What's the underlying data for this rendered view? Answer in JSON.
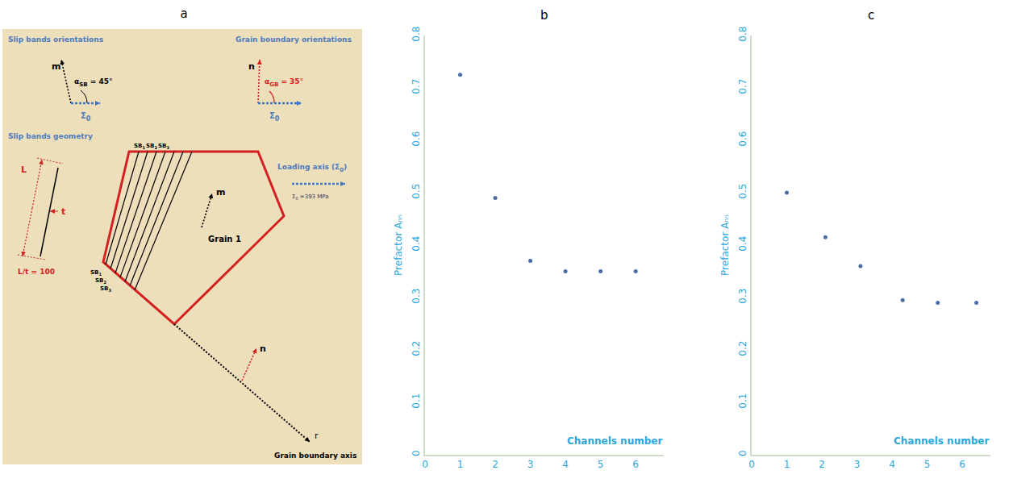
{
  "diagram": {
    "label": "a",
    "slip_bands_orientations": {
      "title": "Slip bands orientations",
      "vector": "m",
      "angle": {
        "base": "α",
        "sub": "SB",
        "tail": " = 45°"
      },
      "load": {
        "base": "Σ",
        "sub": "0",
        "tail": ""
      }
    },
    "grain_boundary_orientations": {
      "title": "Grain boundary orientations",
      "vector": "n",
      "angle": {
        "base": "α",
        "sub": "GB",
        "tail": " = 35°"
      },
      "load": {
        "base": "Σ",
        "sub": "0",
        "tail": ""
      }
    },
    "slip_bands_geometry": {
      "title": "Slip bands geometry",
      "length": "L",
      "thickness": "t",
      "ratio": "L/t = 100"
    },
    "grain": {
      "name": "Grain 1",
      "vector": "m",
      "bands_top": [
        {
          "base": "SB",
          "sub": "1",
          "tail": ""
        },
        {
          "base": "SB",
          "sub": "2",
          "tail": ""
        },
        {
          "base": "SB",
          "sub": "3",
          "tail": ""
        }
      ],
      "bands_bottom": [
        {
          "base": "SB",
          "sub": "1",
          "tail": ""
        },
        {
          "base": "SB",
          "sub": "2",
          "tail": ""
        },
        {
          "base": "SB",
          "sub": "3",
          "tail": ""
        }
      ]
    },
    "loading": {
      "title": {
        "base": "Loading axis (Σ",
        "sub": "0",
        "tail": ")"
      },
      "value": {
        "base": "Σ",
        "sub": "0",
        "tail": " =393 MPa"
      }
    },
    "grain_boundary": {
      "normal": "n",
      "axis": "r",
      "title": "Grain boundary axis"
    }
  },
  "chart_data": [
    {
      "type": "scatter",
      "title": "b",
      "x_label": "Channels number",
      "y_label": "Prefactor Aₙₙ",
      "x": [
        1,
        2,
        3,
        4,
        5,
        6
      ],
      "values": [
        0.725,
        0.49,
        0.37,
        0.35,
        0.35,
        0.35
      ],
      "xlim": [
        0,
        6.8
      ],
      "ylim": [
        0,
        0.8
      ],
      "xticks": [
        0,
        1,
        2,
        3,
        4,
        5,
        6
      ],
      "yticks": [
        0,
        0.1,
        0.2,
        0.3,
        0.4,
        0.5,
        0.6,
        0.7,
        0.8
      ],
      "color": "#4a6da7",
      "marker": "circle",
      "grid": false
    },
    {
      "type": "scatter",
      "title": "c",
      "x_label": "Channels number",
      "y_label": "Prefactor Aₙₙ",
      "x": [
        1,
        2.1,
        3.1,
        4.3,
        5.3,
        6.4
      ],
      "values": [
        0.5,
        0.415,
        0.36,
        0.295,
        0.29,
        0.29
      ],
      "xlim": [
        0,
        6.8
      ],
      "ylim": [
        0,
        0.8
      ],
      "xticks": [
        0,
        1,
        2,
        3,
        4,
        5,
        6
      ],
      "yticks": [
        0,
        0.1,
        0.2,
        0.3,
        0.4,
        0.5,
        0.6,
        0.7,
        0.8
      ],
      "color": "#4a6da7",
      "marker": "circle",
      "grid": false
    }
  ]
}
